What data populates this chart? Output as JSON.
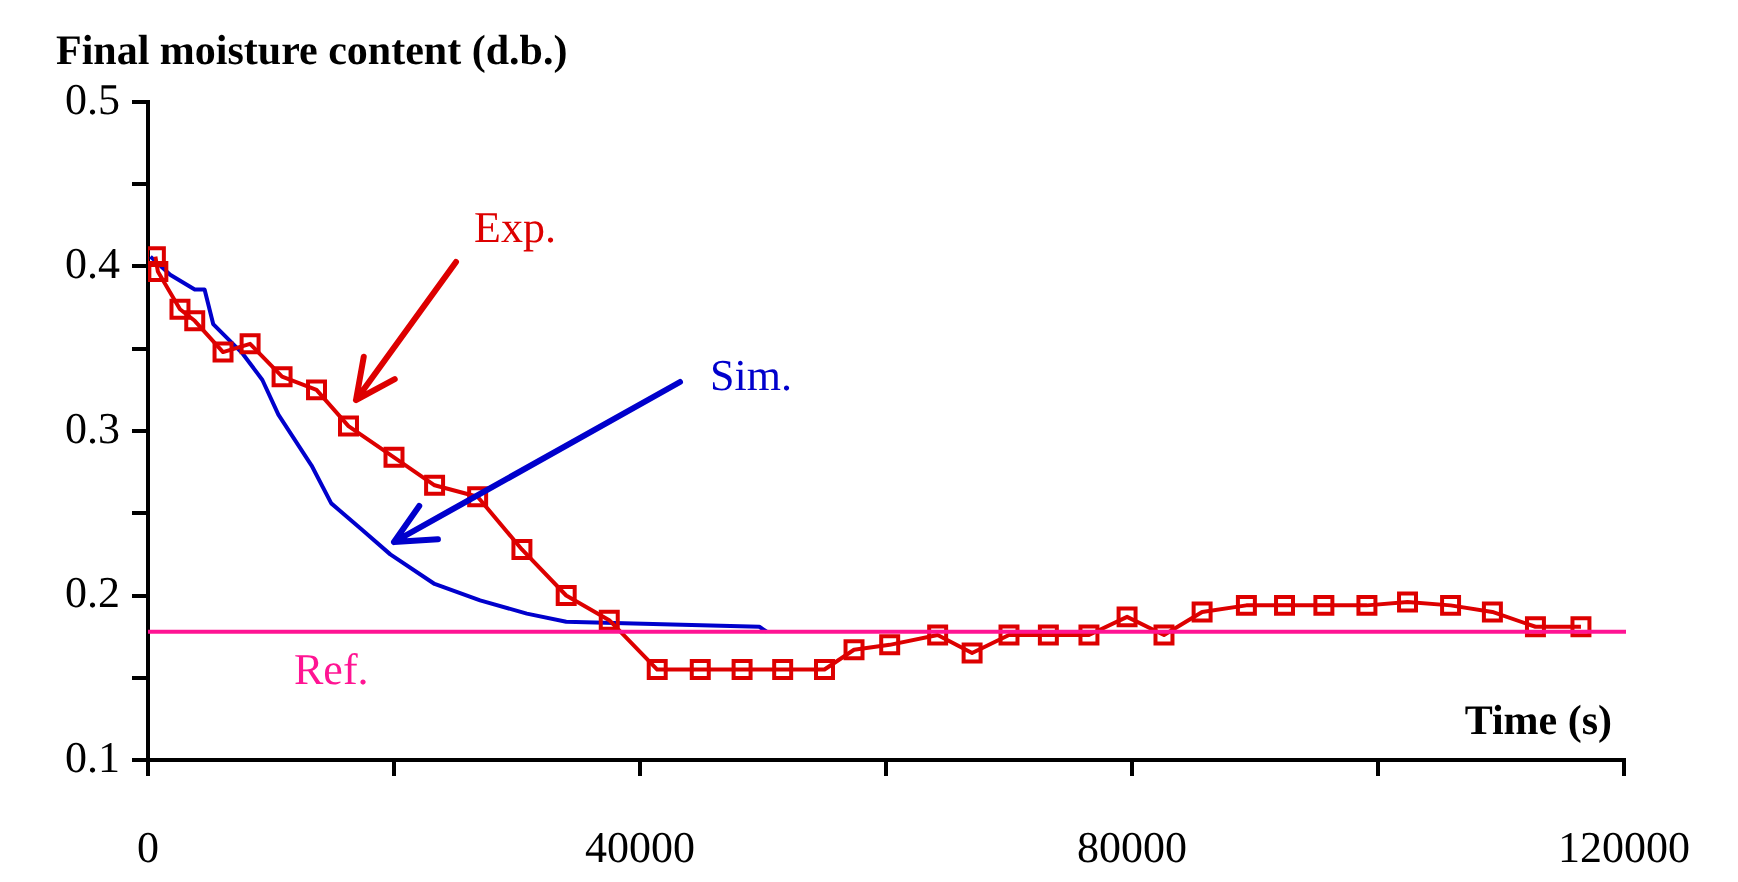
{
  "chart_data": {
    "type": "line",
    "ylabel": "Final moisture content (d.b.)",
    "xlabel": "Time (s)",
    "xlim": [
      0,
      120000
    ],
    "xticks": [
      0,
      {
        "value": 20000,
        "label": null
      },
      40000,
      {
        "value": 60000,
        "label": null
      },
      80000,
      {
        "value": 100000,
        "label": null
      },
      120000
    ],
    "ylim": [
      0.1,
      0.5
    ],
    "yticks": [
      0.1,
      {
        "value": 0.15,
        "label": null
      },
      0.2,
      {
        "value": 0.25,
        "label": null
      },
      0.3,
      {
        "value": 0.35,
        "label": null
      },
      0.4,
      {
        "value": 0.45,
        "label": null
      },
      0.5
    ],
    "grid": false,
    "legend": false,
    "line_style": "solid",
    "series": [
      {
        "color": "#dd0000",
        "marker": "square",
        "x": [
          600,
          800,
          2600,
          3800,
          6100,
          8300,
          10900,
          13700,
          16300,
          20000,
          23300,
          26800,
          30400,
          34000,
          37500,
          41400,
          44900,
          48300,
          51600,
          55000,
          57400,
          60300,
          64200,
          67000,
          70000,
          73200,
          76500,
          79600,
          82600,
          85700,
          89300,
          92400,
          95600,
          99100,
          102400,
          105900,
          109300,
          112800,
          116500
        ],
        "values": [
          0.406,
          0.397,
          0.374,
          0.367,
          0.348,
          0.353,
          0.333,
          0.325,
          0.303,
          0.284,
          0.267,
          0.26,
          0.228,
          0.2,
          0.185,
          0.155,
          0.155,
          0.155,
          0.155,
          0.155,
          0.167,
          0.17,
          0.176,
          0.165,
          0.176,
          0.176,
          0.176,
          0.187,
          0.176,
          0.19,
          0.194,
          0.194,
          0.194,
          0.194,
          0.196,
          0.194,
          0.19,
          0.181,
          0.181
        ]
      },
      {
        "color": "#0000cc",
        "marker": "none",
        "x": [
          200,
          1800,
          3800,
          4600,
          5300,
          7700,
          9300,
          10600,
          13300,
          14900,
          17400,
          19700,
          23300,
          27000,
          30800,
          34000,
          49700,
          50300
        ],
        "values": [
          0.406,
          0.395,
          0.386,
          0.386,
          0.365,
          0.347,
          0.331,
          0.31,
          0.279,
          0.256,
          0.24,
          0.225,
          0.207,
          0.197,
          0.189,
          0.184,
          0.181,
          0.178
        ]
      }
    ],
    "ref_lines": [
      {
        "axis": "y",
        "value": 0.178,
        "color": "#ff1493"
      }
    ],
    "annotations": [
      "Exp.",
      "Sim.",
      "Ref."
    ]
  }
}
